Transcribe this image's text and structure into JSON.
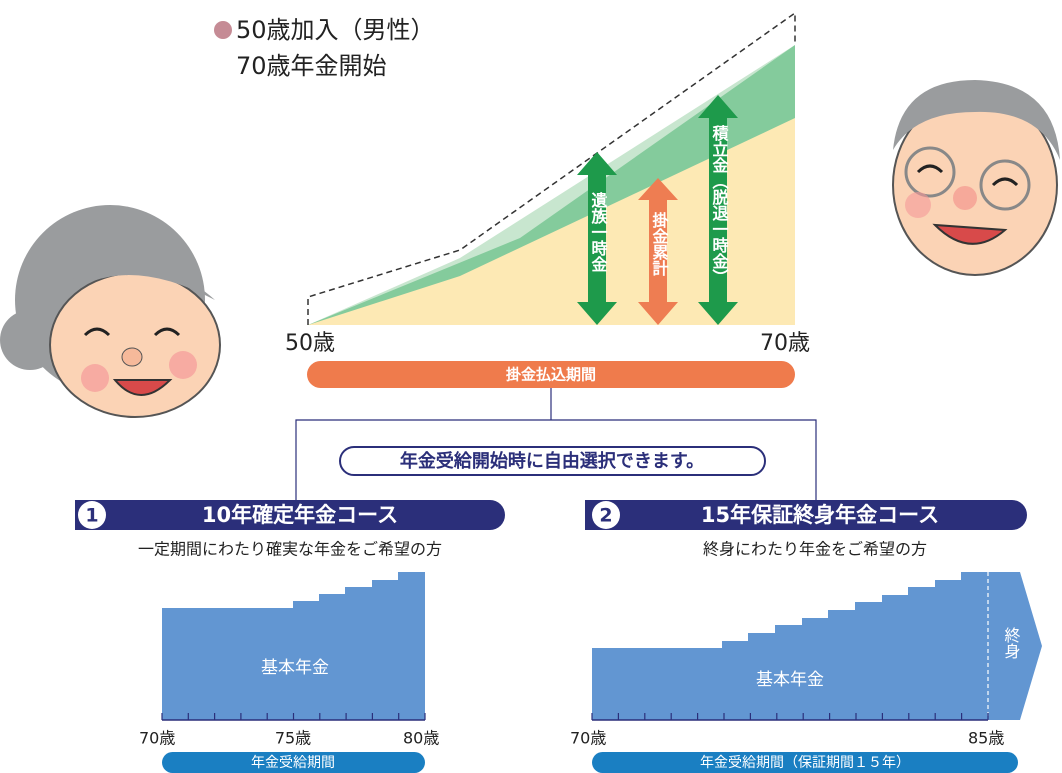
{
  "legend": {
    "title": "50歳加入（男性）",
    "subtitle": "70歳年金開始"
  },
  "accumulation": {
    "arrows": [
      "遺族一時金",
      "掛金累計",
      "積立金（脱退一時金）"
    ],
    "start_label": "50歳",
    "end_label": "70歳",
    "period": "掛金払込期間"
  },
  "choice_note": "年金受給開始時に自由選択できます。",
  "courses": [
    {
      "number": "1",
      "title": "10年確定年金コース",
      "description": "一定期間にわたり確実な年金をご希望の方",
      "bar_label": "基本年金",
      "axis_labels": [
        "70歳",
        "75歳",
        "80歳"
      ],
      "period": "年金受給期間"
    },
    {
      "number": "2",
      "title": "15年保証終身年金コース",
      "description": "終身にわたり年金をご希望の方",
      "bar_label": "基本年金",
      "lifetime_label": "終身",
      "axis_labels": [
        "70歳",
        "85歳"
      ],
      "period": "年金受給期間（保証期間１５年）"
    }
  ]
}
